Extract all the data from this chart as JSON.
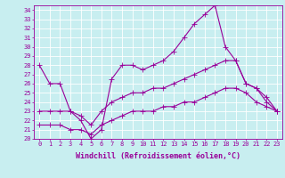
{
  "xlabel": "Windchill (Refroidissement éolien,°C)",
  "xlim": [
    -0.5,
    23.5
  ],
  "ylim": [
    20,
    34.5
  ],
  "xticks": [
    0,
    1,
    2,
    3,
    4,
    5,
    6,
    7,
    8,
    9,
    10,
    11,
    12,
    13,
    14,
    15,
    16,
    17,
    18,
    19,
    20,
    21,
    22,
    23
  ],
  "yticks": [
    20,
    21,
    22,
    23,
    24,
    25,
    26,
    27,
    28,
    29,
    30,
    31,
    32,
    33,
    34
  ],
  "bg_color": "#c8eef0",
  "grid_color": "#b0dde0",
  "line_color": "#990099",
  "line1_y": [
    28.0,
    26.0,
    26.0,
    23.0,
    22.0,
    20.0,
    21.0,
    26.5,
    28.0,
    28.0,
    27.5,
    28.0,
    28.5,
    29.5,
    31.0,
    32.5,
    33.5,
    34.5,
    30.0,
    28.5,
    26.0,
    25.5,
    24.0,
    23.0
  ],
  "line2_y": [
    23.0,
    23.0,
    23.0,
    23.0,
    22.5,
    21.5,
    23.0,
    24.0,
    24.5,
    25.0,
    25.0,
    25.5,
    25.5,
    26.0,
    26.5,
    27.0,
    27.5,
    28.0,
    28.5,
    28.5,
    26.0,
    25.5,
    24.5,
    23.0
  ],
  "line3_y": [
    21.5,
    21.5,
    21.5,
    21.0,
    21.0,
    20.5,
    21.5,
    22.0,
    22.5,
    23.0,
    23.0,
    23.0,
    23.5,
    23.5,
    24.0,
    24.0,
    24.5,
    25.0,
    25.5,
    25.5,
    25.0,
    24.0,
    23.5,
    23.0
  ],
  "markersize": 2.0,
  "linewidth": 0.8,
  "tick_fontsize": 5.0,
  "label_fontsize": 6.0
}
